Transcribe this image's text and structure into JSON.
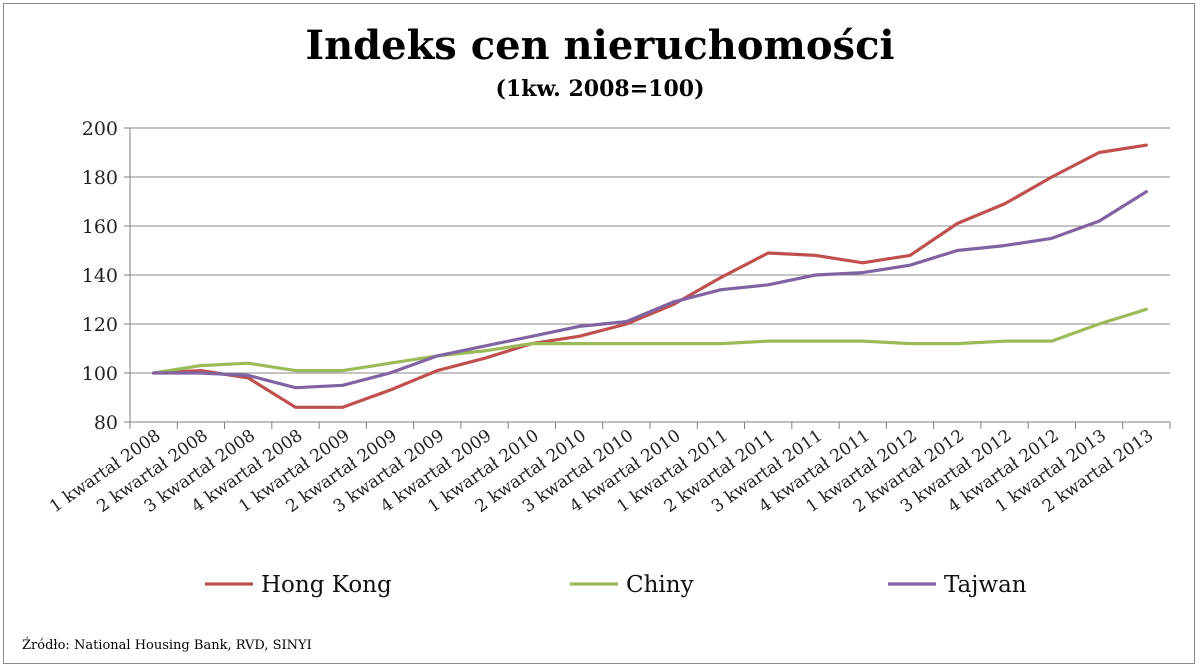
{
  "chart_data": {
    "type": "line",
    "title": "Indeks cen nieruchomości",
    "subtitle": "(1kw. 2008=100)",
    "source": "Źródło:  National Housing Bank, RVD, SINYI",
    "categories": [
      "1 kwartał 2008",
      "2 kwartał 2008",
      "3 kwartał 2008",
      "4 kwartał 2008",
      "1 kwartał 2009",
      "2 kwartał 2009",
      "3 kwartał 2009",
      "4 kwartał 2009",
      "1 kwartał 2010",
      "2 kwartał 2010",
      "3 kwartał 2010",
      "4 kwartał 2010",
      "1 kwartał 2011",
      "2 kwartał 2011",
      "3 kwartał 2011",
      "4 kwartał 2011",
      "1 kwartał 2012",
      "2 kwartał 2012",
      "3 kwartał 2012",
      "4 kwartał 2012",
      "1 kwartał 2013",
      "2 kwartał 2013"
    ],
    "series": [
      {
        "name": "Hong Kong",
        "color": "#c0504d",
        "values": [
          100,
          101,
          98,
          86,
          86,
          93,
          101,
          106,
          112,
          115,
          120,
          128,
          139,
          149,
          148,
          145,
          148,
          161,
          169,
          180,
          190,
          193
        ]
      },
      {
        "name": "Chiny",
        "color": "#9bbb59",
        "values": [
          100,
          103,
          104,
          101,
          101,
          104,
          107,
          109,
          112,
          112,
          112,
          112,
          112,
          113,
          113,
          113,
          112,
          112,
          113,
          113,
          120,
          126
        ]
      },
      {
        "name": "Tajwan",
        "color": "#8064a2",
        "values": [
          100,
          100,
          99,
          94,
          95,
          100,
          107,
          111,
          115,
          119,
          121,
          129,
          134,
          136,
          140,
          141,
          144,
          150,
          152,
          155,
          162,
          174
        ]
      }
    ],
    "ylim": [
      80,
      200
    ],
    "yticks": [
      80,
      100,
      120,
      140,
      160,
      180,
      200
    ],
    "grid": true,
    "legend_position": "bottom"
  }
}
